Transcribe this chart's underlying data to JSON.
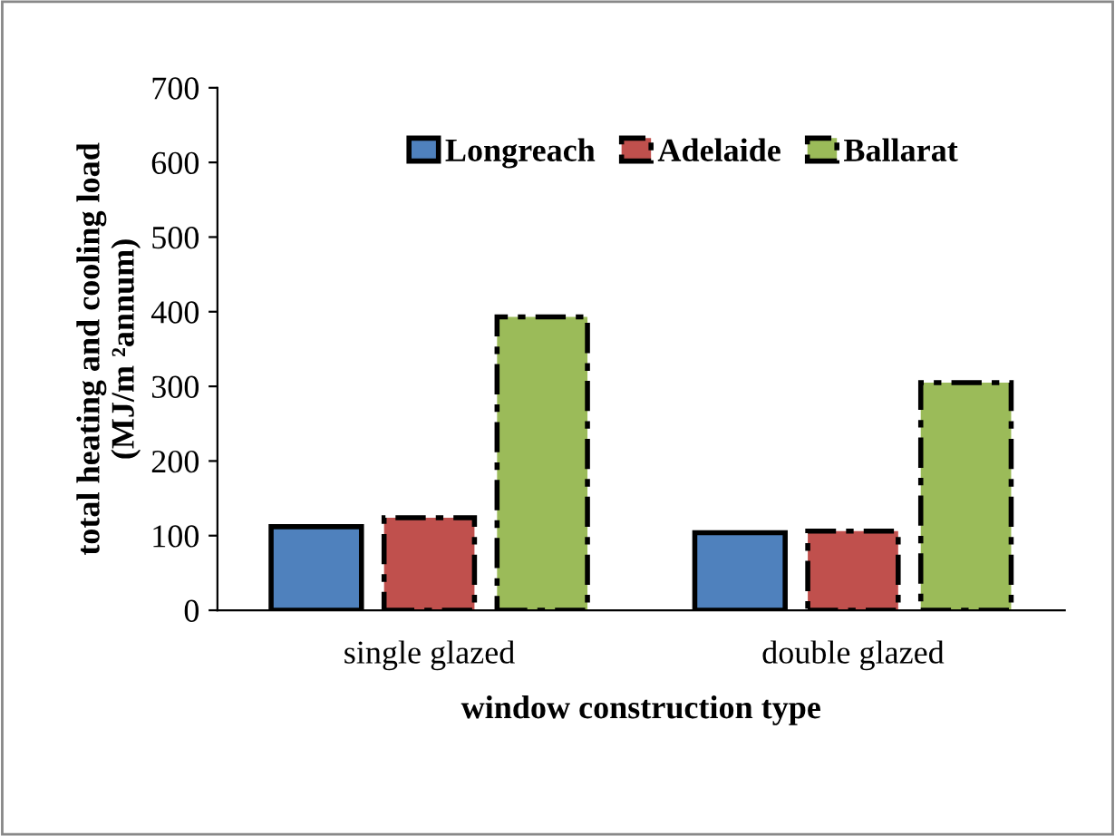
{
  "chart_data": {
    "type": "bar",
    "xlabel": "window construction type",
    "ylabel": "total heating and cooling load\n(MJ/m ²annum)",
    "categories": [
      "single glazed",
      "double glazed"
    ],
    "series": [
      {
        "name": "Longreach",
        "color": "#4f81bd",
        "values": [
          112,
          104
        ],
        "line_style": "solid"
      },
      {
        "name": "Adelaide",
        "color": "#c0504d",
        "values": [
          124,
          106
        ],
        "line_style": "dashed"
      },
      {
        "name": "Ballarat",
        "color": "#9bbb59",
        "values": [
          393,
          305
        ],
        "line_style": "dashed"
      }
    ],
    "ylim": [
      0,
      700
    ],
    "yticks": [
      0,
      100,
      200,
      300,
      400,
      500,
      600,
      700
    ],
    "grid": false,
    "legend": "top"
  }
}
